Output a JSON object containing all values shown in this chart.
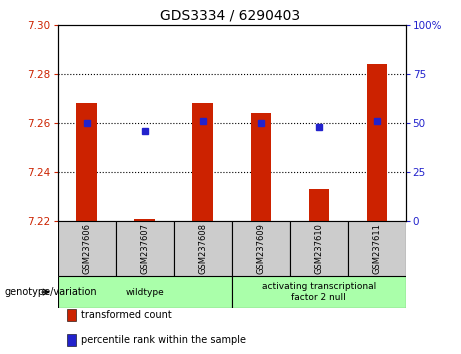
{
  "title": "GDS3334 / 6290403",
  "samples": [
    "GSM237606",
    "GSM237607",
    "GSM237608",
    "GSM237609",
    "GSM237610",
    "GSM237611"
  ],
  "bar_values": [
    7.268,
    7.221,
    7.268,
    7.264,
    7.233,
    7.284
  ],
  "bar_base": 7.22,
  "percentile_values": [
    50,
    46,
    51,
    50,
    48,
    51
  ],
  "ylim_left": [
    7.22,
    7.3
  ],
  "ylim_right": [
    0,
    100
  ],
  "yticks_left": [
    7.22,
    7.24,
    7.26,
    7.28,
    7.3
  ],
  "yticks_right": [
    0,
    25,
    50,
    75,
    100
  ],
  "bar_color": "#cc2200",
  "dot_color": "#2222cc",
  "bg_color": "#ffffff",
  "tick_label_color_left": "#cc2200",
  "tick_label_color_right": "#2222cc",
  "groups": [
    {
      "label": "wildtype",
      "samples": [
        0,
        1,
        2
      ],
      "color": "#aaffaa"
    },
    {
      "label": "activating transcriptional\nfactor 2 null",
      "samples": [
        3,
        4,
        5
      ],
      "color": "#aaffaa"
    }
  ],
  "genotype_label": "genotype/variation",
  "legend_items": [
    {
      "color": "#cc2200",
      "label": "transformed count"
    },
    {
      "color": "#2222cc",
      "label": "percentile rank within the sample"
    }
  ],
  "bar_width": 0.35,
  "sample_bg_color": "#cccccc",
  "group_border_color": "#000000",
  "gridline_y": [
    7.24,
    7.26,
    7.28
  ]
}
